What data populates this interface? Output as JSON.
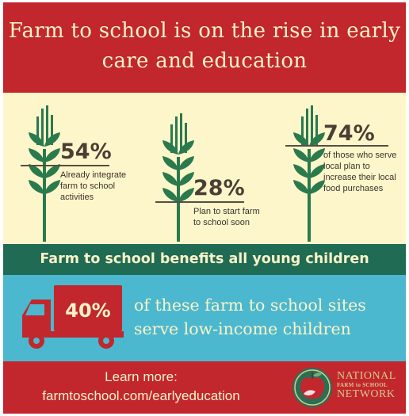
{
  "title_line1": "Farm to school is on the rise in early",
  "title_line2": "care and education",
  "stats": [
    {
      "value": "54%",
      "line1": "Already integrate",
      "line2": "farm to school",
      "line3": "activities"
    },
    {
      "value": "28%",
      "line1": "Plan to start farm",
      "line2": "to school soon"
    },
    {
      "value": "74%",
      "line1": "of those who serve",
      "line2": "local plan to",
      "line3": "increase their local",
      "line4": "food purchases"
    }
  ],
  "benefits_banner": "Farm to school benefits all young children",
  "truck_stat": "40%",
  "truck_text_line1": "of these farm to school sites",
  "truck_text_line2": "serve low-income children",
  "learn_more_line1": "Learn more:",
  "learn_more_line2": "farmtoschool.com/earlyeducation",
  "logo": {
    "line1": "NATIONAL",
    "line2": "FARM to SCHOOL",
    "line3": "NETWORK"
  },
  "colors": {
    "red": "#c1272d",
    "cream": "#fdf6cb",
    "green": "#1f6b53",
    "blue": "#4bb8cf",
    "wheat": "#2a7a4e"
  },
  "icons": [
    "wheat-icon",
    "truck-icon",
    "apple-logo-icon"
  ]
}
